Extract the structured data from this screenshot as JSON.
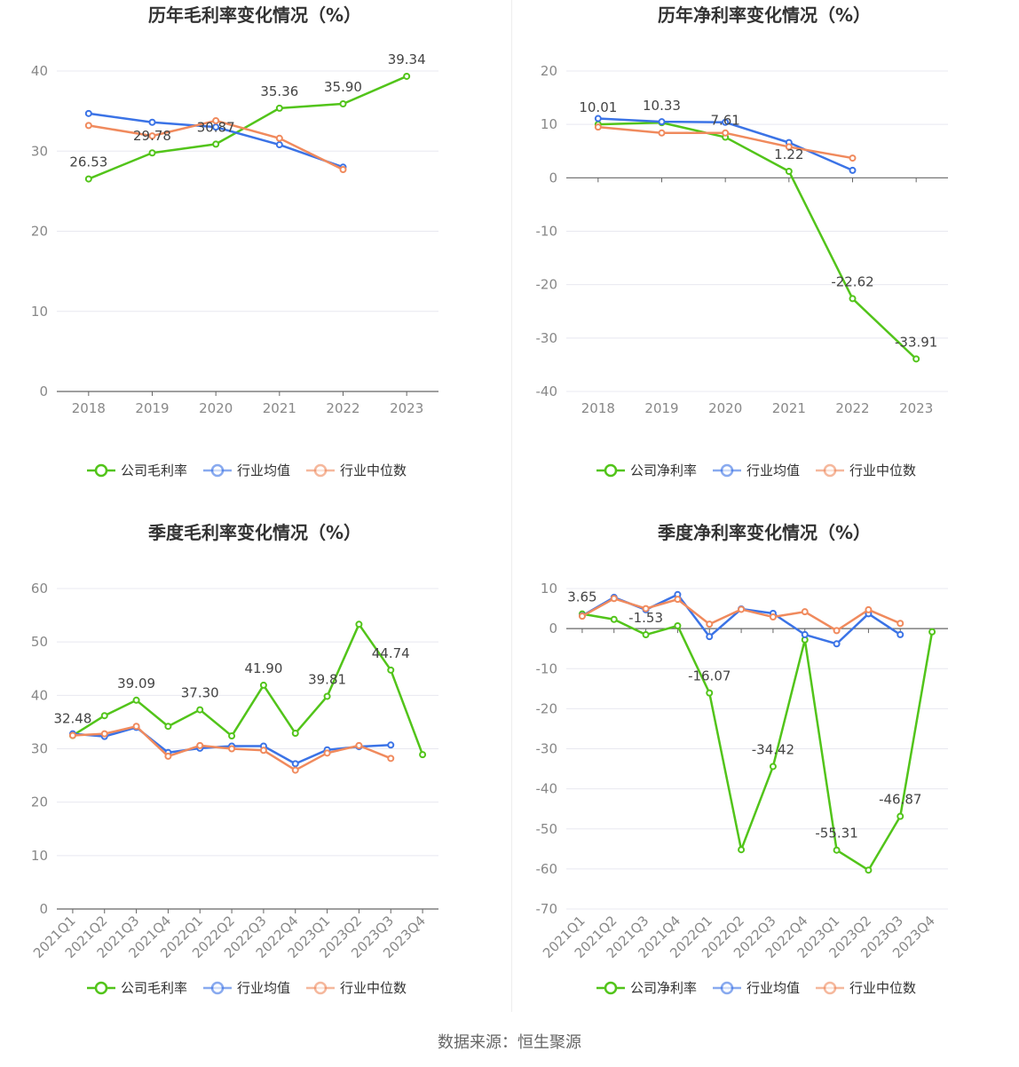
{
  "source_text": "数据来源：恒生聚源",
  "colors": {
    "company": "#52c41a",
    "avg": "#3b73e6",
    "median": "#f08a5d",
    "grid": "#e8e8f0",
    "axis": "#666666"
  },
  "chart_data": [
    {
      "type": "line",
      "title": "历年毛利率变化情况（%）",
      "categories": [
        "2018",
        "2019",
        "2020",
        "2021",
        "2022",
        "2023"
      ],
      "ylim": [
        0,
        40
      ],
      "yticks": [
        0,
        10,
        20,
        30,
        40
      ],
      "grid": true,
      "legend_position": "bottom",
      "rotate_x": false,
      "series": [
        {
          "name": "公司毛利率",
          "key": "company",
          "values": [
            26.53,
            29.78,
            30.87,
            35.36,
            35.9,
            39.34
          ],
          "labels": [
            "26.53",
            "29.78",
            "30.87",
            "35.36",
            "35.90",
            "39.34"
          ]
        },
        {
          "name": "行业均值",
          "key": "avg",
          "values": [
            34.7,
            33.6,
            33.0,
            30.8,
            28.0,
            null
          ],
          "labels": []
        },
        {
          "name": "行业中位数",
          "key": "median",
          "values": [
            33.2,
            31.9,
            33.8,
            31.6,
            27.7,
            null
          ],
          "labels": []
        }
      ]
    },
    {
      "type": "line",
      "title": "历年净利率变化情况（%）",
      "categories": [
        "2018",
        "2019",
        "2020",
        "2021",
        "2022",
        "2023"
      ],
      "ylim": [
        -40,
        20
      ],
      "yticks": [
        -40,
        -30,
        -20,
        -10,
        0,
        10,
        20
      ],
      "grid": true,
      "legend_position": "bottom",
      "rotate_x": false,
      "series": [
        {
          "name": "公司净利率",
          "key": "company",
          "values": [
            10.01,
            10.33,
            7.61,
            1.22,
            -22.62,
            -33.91
          ],
          "labels": [
            "10.01",
            "10.33",
            "7.61",
            "1.22",
            "-22.62",
            "-33.91"
          ]
        },
        {
          "name": "行业均值",
          "key": "avg",
          "values": [
            11.1,
            10.5,
            10.4,
            6.6,
            1.4,
            null
          ],
          "labels": []
        },
        {
          "name": "行业中位数",
          "key": "median",
          "values": [
            9.5,
            8.4,
            8.4,
            5.8,
            3.7,
            null
          ],
          "labels": []
        }
      ]
    },
    {
      "type": "line",
      "title": "季度毛利率变化情况（%）",
      "categories": [
        "2021Q1",
        "2021Q2",
        "2021Q3",
        "2021Q4",
        "2022Q1",
        "2022Q2",
        "2022Q3",
        "2022Q4",
        "2023Q1",
        "2023Q2",
        "2023Q3",
        "2023Q4"
      ],
      "ylim": [
        0,
        60
      ],
      "yticks": [
        0,
        10,
        20,
        30,
        40,
        50,
        60
      ],
      "grid": true,
      "legend_position": "bottom",
      "rotate_x": true,
      "series": [
        {
          "name": "公司毛利率",
          "key": "company",
          "values": [
            32.48,
            36.2,
            39.09,
            34.2,
            37.3,
            32.4,
            41.9,
            32.9,
            39.81,
            53.3,
            44.74,
            28.9
          ],
          "labels": [
            "32.48",
            "",
            "39.09",
            "",
            "37.30",
            "",
            "41.90",
            "",
            "39.81",
            "",
            "44.74",
            ""
          ]
        },
        {
          "name": "行业均值",
          "key": "avg",
          "values": [
            32.8,
            32.3,
            34.0,
            29.3,
            30.1,
            30.5,
            30.5,
            27.2,
            29.8,
            30.4,
            30.7,
            null
          ],
          "labels": []
        },
        {
          "name": "行业中位数",
          "key": "median",
          "values": [
            32.5,
            32.8,
            34.2,
            28.6,
            30.6,
            30.0,
            29.7,
            26.0,
            29.2,
            30.6,
            28.2,
            null
          ],
          "labels": []
        }
      ]
    },
    {
      "type": "line",
      "title": "季度净利率变化情况（%）",
      "categories": [
        "2021Q1",
        "2021Q2",
        "2021Q3",
        "2021Q4",
        "2022Q1",
        "2022Q2",
        "2022Q3",
        "2022Q4",
        "2023Q1",
        "2023Q2",
        "2023Q3",
        "2023Q4"
      ],
      "ylim": [
        -70,
        10
      ],
      "yticks": [
        -70,
        -60,
        -50,
        -40,
        -30,
        -20,
        -10,
        0,
        10
      ],
      "grid": true,
      "legend_position": "bottom",
      "rotate_x": true,
      "series": [
        {
          "name": "公司净利率",
          "key": "company",
          "values": [
            3.65,
            2.3,
            -1.53,
            0.7,
            -16.07,
            -55.2,
            -34.42,
            -2.8,
            -55.31,
            -60.3,
            -46.87,
            -0.8
          ],
          "labels": [
            "3.65",
            "",
            "-1.53",
            "",
            "-16.07",
            "",
            "-34.42",
            "",
            "-55.31",
            "",
            "-46.87",
            ""
          ]
        },
        {
          "name": "行业均值",
          "key": "avg",
          "values": [
            3.2,
            7.8,
            4.7,
            8.5,
            -2.0,
            4.9,
            3.8,
            -1.5,
            -3.8,
            3.7,
            -1.5,
            null
          ],
          "labels": []
        },
        {
          "name": "行业中位数",
          "key": "median",
          "values": [
            3.1,
            7.5,
            5.0,
            7.3,
            1.1,
            4.8,
            2.9,
            4.2,
            -0.5,
            4.7,
            1.3,
            null
          ],
          "labels": []
        }
      ]
    }
  ]
}
